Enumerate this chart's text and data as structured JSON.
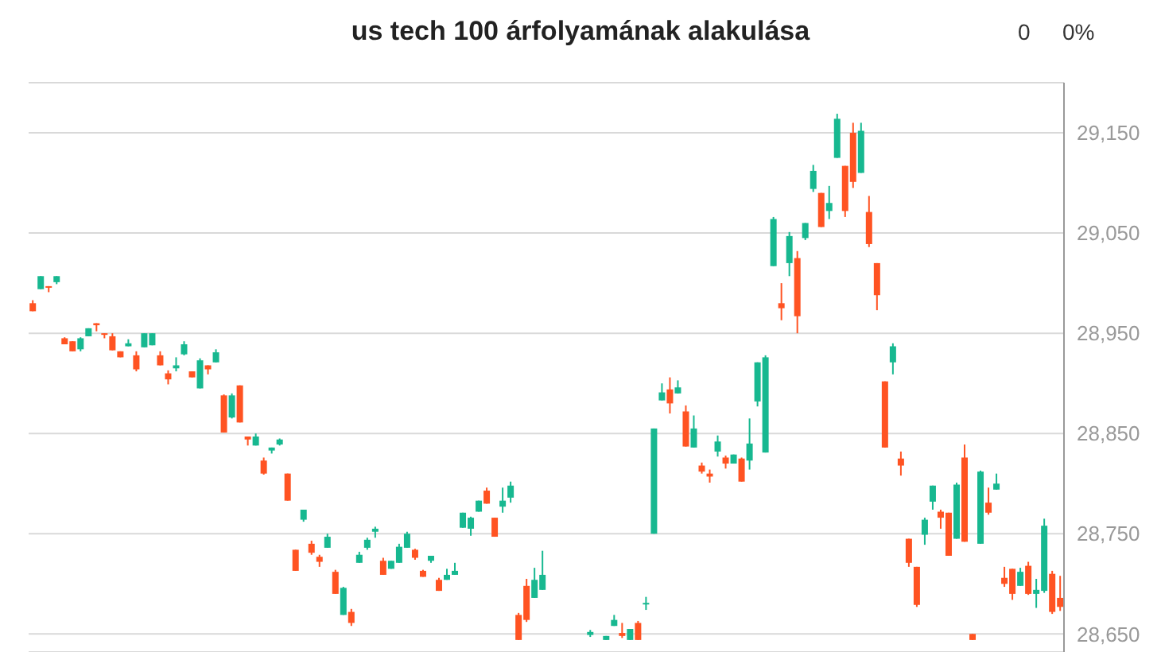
{
  "chart_data": {
    "type": "candlestick",
    "title": "us tech 100 árfolyamának alakulása",
    "annotations": [
      "0",
      "0%"
    ],
    "categories": [
      null,
      null,
      null,
      null,
      null,
      null,
      null,
      null,
      null,
      null,
      null,
      null,
      null,
      null,
      null,
      null,
      null,
      null,
      null,
      null,
      null,
      null,
      null,
      null,
      null,
      null,
      null,
      null,
      null,
      null,
      null,
      null,
      null,
      null,
      null,
      null,
      null,
      null,
      null,
      null,
      null,
      null,
      null,
      null,
      null,
      null,
      null,
      null,
      null,
      null,
      null,
      null,
      null,
      null,
      null,
      null,
      null,
      null,
      null,
      null,
      null,
      null,
      null,
      null,
      null,
      null,
      null,
      null,
      null,
      null,
      null,
      null,
      null,
      null,
      null,
      null,
      null,
      null,
      null,
      null,
      null,
      null,
      null,
      null,
      null,
      null,
      null,
      null,
      null,
      null,
      null,
      null,
      null,
      null,
      null,
      null,
      null,
      null,
      null,
      null,
      null,
      null,
      null,
      null,
      null,
      null,
      null,
      null,
      null,
      null,
      null,
      null,
      null,
      null,
      null,
      null,
      null,
      null,
      null,
      null,
      null,
      null,
      null,
      null,
      null,
      null,
      null,
      null,
      null,
      null
    ],
    "ohlc": [
      [
        28980,
        28983,
        28972,
        28972
      ],
      [
        28994,
        29007,
        28994,
        29007
      ],
      [
        28997,
        28997,
        28991,
        28996
      ],
      [
        29001,
        29007,
        28999,
        29007
      ],
      [
        28945,
        28946,
        28939,
        28939
      ],
      [
        28942,
        28942,
        28932,
        28932
      ],
      [
        28934,
        28946,
        28932,
        28945
      ],
      [
        28947,
        28955,
        28947,
        28955
      ],
      [
        28960,
        28960,
        28952,
        28958
      ],
      [
        28950,
        28950,
        28945,
        28949
      ],
      [
        28947,
        28950,
        28933,
        28933
      ],
      [
        28932,
        28932,
        28926,
        28926
      ],
      [
        28937,
        28944,
        28937,
        28940
      ],
      [
        28928,
        28932,
        28912,
        28914
      ],
      [
        28936,
        28950,
        28936,
        28950
      ],
      [
        28938,
        28950,
        28938,
        28950
      ],
      [
        28928,
        28932,
        28918,
        28918
      ],
      [
        28910,
        28913,
        28899,
        28904
      ],
      [
        28915,
        28926,
        28912,
        28918
      ],
      [
        28929,
        28942,
        28928,
        28939
      ],
      [
        28912,
        28912,
        28906,
        28906
      ],
      [
        28895,
        28925,
        28895,
        28923
      ],
      [
        28918,
        28918,
        28909,
        28914
      ],
      [
        28921,
        28934,
        28921,
        28931
      ],
      [
        28888,
        28889,
        28851,
        28851
      ],
      [
        28866,
        28890,
        28865,
        28888
      ],
      [
        28898,
        28898,
        28861,
        28861
      ],
      [
        28847,
        28847,
        28838,
        28844
      ],
      [
        28838,
        28850,
        28838,
        28847
      ],
      [
        28823,
        28826,
        28809,
        28810
      ],
      [
        28833,
        28836,
        28830,
        28836
      ],
      [
        28839,
        28845,
        28838,
        28844
      ],
      [
        28810,
        28810,
        28783,
        28783
      ],
      [
        28734,
        28734,
        28713,
        28713
      ],
      [
        28764,
        28774,
        28762,
        28774
      ],
      [
        28740,
        28743,
        28729,
        28731
      ],
      [
        28727,
        28729,
        28717,
        28722
      ],
      [
        28736,
        28750,
        28736,
        28747
      ],
      [
        28712,
        28714,
        28690,
        28690
      ],
      [
        28669,
        28697,
        28669,
        28696
      ],
      [
        28672,
        28675,
        28658,
        28661
      ],
      [
        28721,
        28732,
        28721,
        28729
      ],
      [
        28736,
        28746,
        28734,
        28744
      ],
      [
        28752,
        28757,
        28746,
        28755
      ],
      [
        28723,
        28726,
        28709,
        28709
      ],
      [
        28715,
        28723,
        28715,
        28723
      ],
      [
        28721,
        28740,
        28721,
        28737
      ],
      [
        28736,
        28752,
        28736,
        28750
      ],
      [
        28734,
        28735,
        28724,
        28726
      ],
      [
        28713,
        28714,
        28707,
        28707
      ],
      [
        28723,
        28728,
        28721,
        28728
      ],
      [
        28704,
        28706,
        28693,
        28693
      ],
      [
        28704,
        28715,
        28704,
        28709
      ],
      [
        28709,
        28721,
        28709,
        28713
      ],
      [
        28756,
        28771,
        28756,
        28771
      ],
      [
        28755,
        28767,
        28748,
        28766
      ],
      [
        28772,
        28783,
        28772,
        28783
      ],
      [
        28793,
        28796,
        28780,
        28780
      ],
      [
        28766,
        28766,
        28747,
        28747
      ],
      [
        28777,
        28796,
        28771,
        28783
      ],
      [
        28786,
        28802,
        28781,
        28798
      ],
      [
        28669,
        28671,
        28644,
        28644
      ],
      [
        28698,
        28705,
        28662,
        28664
      ],
      [
        28686,
        28716,
        28686,
        28704
      ],
      [
        28694,
        28733,
        28694,
        28709
      ],
      null,
      null,
      null,
      null,
      null,
      [
        28649,
        28654,
        28647,
        28652
      ],
      null,
      [
        28644,
        28648,
        28644,
        28648
      ],
      [
        28658,
        28669,
        28658,
        28664
      ],
      [
        28651,
        28661,
        28646,
        28648
      ],
      [
        28644,
        28655,
        28644,
        28655
      ],
      [
        28661,
        28663,
        28644,
        28644
      ],
      [
        28680,
        28687,
        28674,
        28681
      ],
      [
        28750,
        28855,
        28750,
        28855
      ],
      [
        28883,
        28900,
        28883,
        28891
      ],
      [
        28894,
        28906,
        28870,
        28880
      ],
      [
        28890,
        28903,
        28890,
        28896
      ],
      [
        28872,
        28878,
        28837,
        28837
      ],
      [
        28836,
        28868,
        28836,
        28855
      ],
      [
        28818,
        28821,
        28810,
        28812
      ],
      [
        28810,
        28814,
        28801,
        28807
      ],
      [
        28832,
        28848,
        28827,
        28842
      ],
      [
        28826,
        28828,
        28815,
        28820
      ],
      [
        28820,
        28829,
        28820,
        28829
      ],
      [
        28825,
        28826,
        28802,
        28802
      ],
      [
        28823,
        28865,
        28814,
        28840
      ],
      [
        28882,
        28921,
        28877,
        28921
      ],
      [
        28831,
        28928,
        28831,
        28926
      ],
      [
        29017,
        29066,
        29017,
        29064
      ],
      [
        28980,
        29000,
        28963,
        28975
      ],
      [
        29020,
        29051,
        29007,
        29047
      ],
      [
        29025,
        29032,
        28950,
        28967
      ],
      [
        29045,
        29060,
        29043,
        29060
      ],
      [
        29094,
        29118,
        29091,
        29112
      ],
      [
        29090,
        29090,
        29056,
        29056
      ],
      [
        29072,
        29097,
        29064,
        29080
      ],
      [
        29125,
        29169,
        29125,
        29164
      ],
      [
        29117,
        29117,
        29066,
        29072
      ],
      [
        29150,
        29160,
        29095,
        29101
      ],
      [
        29110,
        29160,
        29110,
        29152
      ],
      [
        29071,
        29087,
        29036,
        29039
      ],
      [
        29020,
        29020,
        28973,
        28988
      ],
      [
        28902,
        28902,
        28836,
        28836
      ],
      [
        28921,
        28940,
        28909,
        28937
      ],
      [
        28825,
        28832,
        28808,
        28818
      ],
      [
        28745,
        28745,
        28717,
        28721
      ],
      [
        28717,
        28717,
        28677,
        28679
      ],
      [
        28749,
        28766,
        28739,
        28764
      ],
      [
        28782,
        28798,
        28774,
        28798
      ],
      [
        28772,
        28774,
        28755,
        28766
      ],
      [
        28771,
        28771,
        28728,
        28728
      ],
      [
        28745,
        28801,
        28745,
        28799
      ],
      [
        28826,
        28839,
        28742,
        28742
      ],
      [
        28650,
        28650,
        28644,
        28644
      ],
      [
        28740,
        28813,
        28740,
        28812
      ],
      [
        28781,
        28796,
        28769,
        28771
      ],
      [
        28794,
        28810,
        28794,
        28800
      ],
      [
        28706,
        28717,
        28697,
        28700
      ],
      [
        28715,
        28715,
        28684,
        28690
      ],
      [
        28698,
        28716,
        28698,
        28712
      ],
      [
        28718,
        28722,
        28689,
        28690
      ],
      [
        28690,
        28705,
        28676,
        28694
      ],
      [
        28693,
        28765,
        28691,
        28758
      ],
      [
        28710,
        28713,
        28670,
        28672
      ],
      [
        28686,
        28708,
        28673,
        28677
      ]
    ],
    "colors": [
      "#ff5322",
      "#17b890",
      "#ff5322",
      "#17b890",
      "#ff5322",
      "#ff5322",
      "#17b890",
      "#17b890",
      "#ff5322",
      "#ff5322",
      "#ff5322",
      "#ff5322",
      "#17b890",
      "#ff5322",
      "#17b890",
      "#17b890",
      "#ff5322",
      "#ff5322",
      "#17b890",
      "#17b890",
      "#ff5322",
      "#17b890",
      "#ff5322",
      "#17b890",
      "#ff5322",
      "#17b890",
      "#ff5322",
      "#ff5322",
      "#17b890",
      "#ff5322",
      "#17b890",
      "#17b890",
      "#ff5322",
      "#ff5322",
      "#17b890",
      "#ff5322",
      "#ff5322",
      "#17b890",
      "#ff5322",
      "#17b890",
      "#ff5322",
      "#17b890",
      "#17b890",
      "#17b890",
      "#ff5322",
      "#17b890",
      "#17b890",
      "#17b890",
      "#ff5322",
      "#ff5322",
      "#17b890",
      "#ff5322",
      "#17b890",
      "#17b890",
      "#17b890",
      "#17b890",
      "#17b890",
      "#ff5322",
      "#ff5322",
      "#17b890",
      "#17b890",
      "#ff5322",
      "#ff5322",
      "#17b890",
      "#17b890",
      null,
      null,
      null,
      null,
      null,
      "#17b890",
      null,
      "#17b890",
      "#17b890",
      "#ff5322",
      "#17b890",
      "#ff5322",
      "#17b890",
      "#17b890",
      "#17b890",
      "#ff5322",
      "#17b890",
      "#ff5322",
      "#17b890",
      "#ff5322",
      "#ff5322",
      "#17b890",
      "#ff5322",
      "#17b890",
      "#ff5322",
      "#17b890",
      "#17b890",
      "#17b890",
      "#17b890",
      "#ff5322",
      "#17b890",
      "#ff5322",
      "#17b890",
      "#17b890",
      "#ff5322",
      "#17b890",
      "#17b890",
      "#ff5322",
      "#ff5322",
      "#17b890",
      "#ff5322",
      "#ff5322",
      "#ff5322",
      "#17b890",
      "#ff5322",
      "#ff5322",
      "#ff5322",
      "#17b890",
      "#17b890",
      "#ff5322",
      "#ff5322",
      "#17b890",
      "#ff5322",
      "#ff5322",
      "#17b890",
      "#ff5322",
      "#17b890",
      "#ff5322",
      "#ff5322",
      "#17b890",
      "#ff5322",
      "#17b890",
      "#17b890",
      "#ff5322",
      "#ff5322"
    ],
    "ylim": [
      28632,
      29200
    ],
    "yticks": [
      {
        "value": 28650,
        "label": "28,650"
      },
      {
        "value": 28750,
        "label": "28,750"
      },
      {
        "value": 28850,
        "label": "28,850"
      },
      {
        "value": 28950,
        "label": "28,950"
      },
      {
        "value": 29050,
        "label": "29,050"
      },
      {
        "value": 29150,
        "label": "29,150"
      }
    ],
    "grid": "y",
    "tick_labels": "y"
  }
}
